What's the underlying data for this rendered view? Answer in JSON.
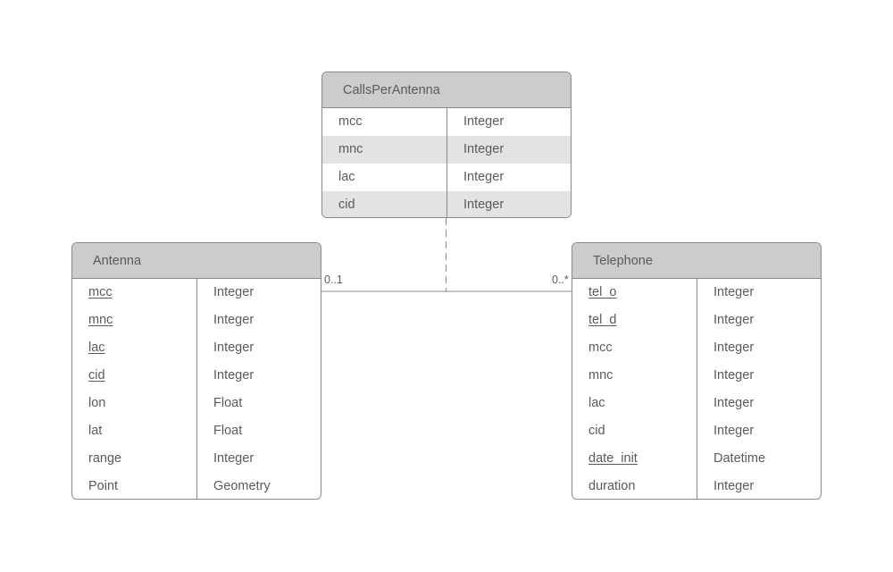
{
  "colors": {
    "header_fill": "#cccccc",
    "border": "#8a8a8a",
    "row_shade": "#e3e3e3",
    "text": "#5a5a5a",
    "background": "#ffffff"
  },
  "entities": {
    "calls_per_antenna": {
      "title": "CallsPerAntenna",
      "attributes": [
        {
          "name": "mcc",
          "type": "Integer",
          "key": false
        },
        {
          "name": "mnc",
          "type": "Integer",
          "key": false
        },
        {
          "name": "lac",
          "type": "Integer",
          "key": false
        },
        {
          "name": "cid",
          "type": "Integer",
          "key": false
        }
      ]
    },
    "antenna": {
      "title": "Antenna",
      "attributes": [
        {
          "name": "mcc",
          "type": "Integer",
          "key": true
        },
        {
          "name": "mnc",
          "type": "Integer",
          "key": true
        },
        {
          "name": "lac",
          "type": "Integer",
          "key": true
        },
        {
          "name": "cid",
          "type": "Integer",
          "key": true
        },
        {
          "name": "lon",
          "type": "Float",
          "key": false
        },
        {
          "name": "lat",
          "type": "Float",
          "key": false
        },
        {
          "name": "range",
          "type": "Integer",
          "key": false
        },
        {
          "name": "Point",
          "type": "Geometry",
          "key": false
        }
      ]
    },
    "telephone": {
      "title": "Telephone",
      "attributes": [
        {
          "name": "tel_o",
          "type": "Integer",
          "key": true
        },
        {
          "name": "tel_d",
          "type": "Integer",
          "key": true
        },
        {
          "name": "mcc",
          "type": "Integer",
          "key": false
        },
        {
          "name": "mnc",
          "type": "Integer",
          "key": false
        },
        {
          "name": "lac",
          "type": "Integer",
          "key": false
        },
        {
          "name": "cid",
          "type": "Integer",
          "key": false
        },
        {
          "name": "date_init",
          "type": "Datetime",
          "key": true
        },
        {
          "name": "duration",
          "type": "Integer",
          "key": false
        }
      ]
    }
  },
  "association": {
    "antenna_multiplicity": "0..1",
    "telephone_multiplicity": "0..*",
    "association_class": "CallsPerAntenna"
  }
}
